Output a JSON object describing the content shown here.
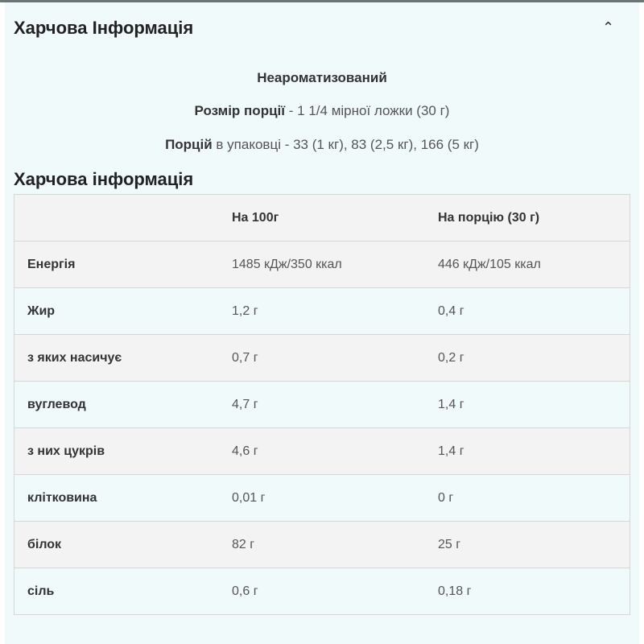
{
  "accordion": {
    "title": "Харчова Інформація",
    "toggle_icon": "chevron-up-icon"
  },
  "flavor": "Неароматизований",
  "serving_size": {
    "label": "Розмір порції",
    "value": "- 1 1/4 мірної ложки (30 г)"
  },
  "servings": {
    "label": "Порцій",
    "label_rest": "в упаковці",
    "value": "- 33 (1 кг), 83 (2,5 кг), 166 (5 кг)"
  },
  "table": {
    "title": "Харчова інформація",
    "headers": [
      "",
      "На 100г",
      "На порцію (30 г)"
    ],
    "rows": [
      [
        "Енергія",
        "1485 кДж/350 ккал",
        "446 кДж/105 ккал"
      ],
      [
        "Жир",
        "1,2 г",
        "0,4 г"
      ],
      [
        "з яких насичує",
        "0,7 г",
        "0,2 г"
      ],
      [
        "вуглевод",
        "4,7 г",
        "1,4 г"
      ],
      [
        "з них цукрів",
        "4,6 г",
        "1,4 г"
      ],
      [
        "клітковина",
        "0,01 г",
        "0 г"
      ],
      [
        "білок",
        "82 г",
        "25 г"
      ],
      [
        "сіль",
        "0,6 г",
        "0,18 г"
      ]
    ]
  }
}
